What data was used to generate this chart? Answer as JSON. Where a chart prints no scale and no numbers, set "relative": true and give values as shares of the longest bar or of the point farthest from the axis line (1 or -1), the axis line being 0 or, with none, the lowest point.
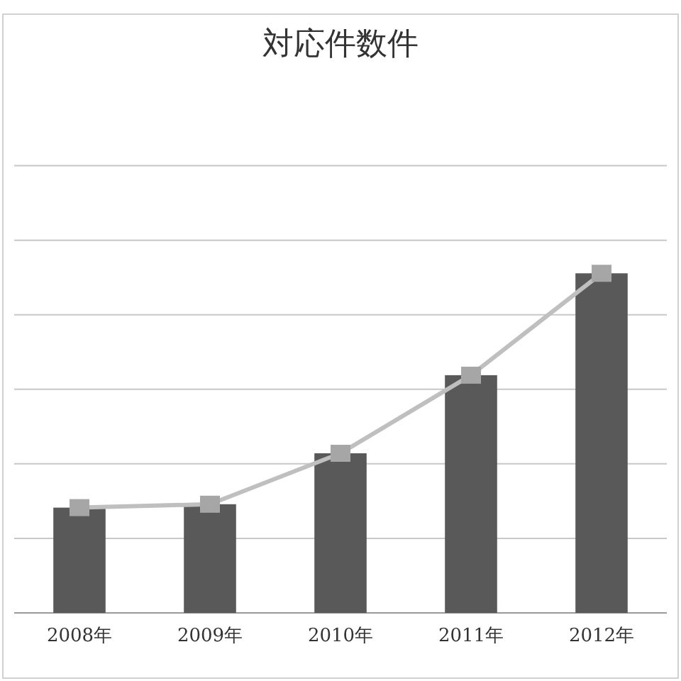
{
  "chart_data": {
    "type": "bar",
    "title": "対応件数件",
    "categories": [
      "2008年",
      "2009年",
      "2010年",
      "2011年",
      "2012年"
    ],
    "relative": true,
    "grid": true,
    "series": [
      {
        "color": "#595959",
        "values": [
          0.31,
          0.32,
          0.47,
          0.7,
          1.0
        ]
      },
      {
        "type": "line",
        "color": "#bfbfbf",
        "marker": "square",
        "values": [
          0.31,
          0.32,
          0.47,
          0.7,
          1.0
        ]
      }
    ]
  }
}
